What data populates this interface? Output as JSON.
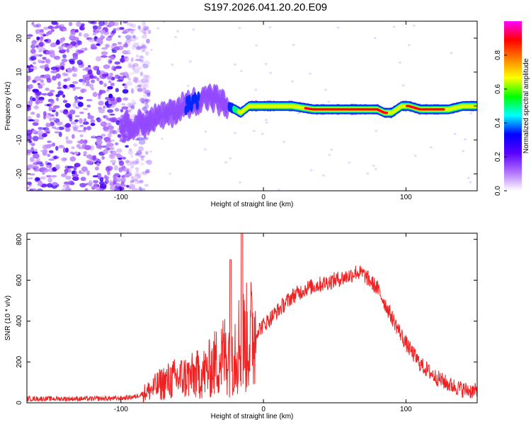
{
  "title": "S197.2026.041.20.20.E09",
  "chart_data": [
    {
      "type": "heatmap",
      "xlabel": "Height of straight line (km)",
      "ylabel": "Frequency (Hz)",
      "xlim": [
        -166,
        150
      ],
      "ylim": [
        -25,
        25
      ],
      "xticks": [
        -100,
        0,
        100
      ],
      "yticks": [
        -20,
        -10,
        0,
        10,
        20
      ],
      "colorbar": {
        "label": "Normalized spectral amplitude",
        "range": [
          0,
          1
        ],
        "ticks": [
          "0.0",
          "0.2",
          "0.4",
          "0.6",
          "0.8"
        ],
        "tick_values": [
          0.0,
          0.2,
          0.4,
          0.6,
          0.8
        ],
        "colors": [
          "#ffffff",
          "#b070ff",
          "#5a00ff",
          "#0000ff",
          "#00ffff",
          "#00ff00",
          "#ffff00",
          "#ff8000",
          "#ff0000",
          "#ff00ff"
        ]
      },
      "ridge": {
        "x": [
          -100,
          -85,
          -70,
          -55,
          -45,
          -38,
          -32,
          -28,
          -25,
          -20,
          -16,
          -10,
          0,
          10,
          20,
          35,
          50,
          70,
          80,
          85,
          90,
          97,
          102,
          110,
          120,
          130,
          140,
          150
        ],
        "y": [
          -6,
          -5,
          -3,
          0,
          2,
          3,
          2,
          0,
          0,
          -1,
          -2,
          0,
          0,
          0,
          0,
          -1,
          -1,
          -1,
          -1,
          -2,
          -2,
          0,
          0,
          -1,
          -1,
          -1,
          0,
          0
        ],
        "amplitude": [
          0.15,
          0.2,
          0.25,
          0.3,
          0.3,
          0.28,
          0.3,
          0.25,
          0.28,
          0.5,
          0.7,
          0.6,
          0.7,
          0.7,
          0.7,
          0.95,
          0.95,
          0.95,
          0.95,
          0.95,
          0.7,
          0.7,
          0.95,
          0.95,
          0.95,
          0.8,
          0.8,
          0.7
        ]
      }
    },
    {
      "type": "line",
      "xlabel": "Height of straight line (km)",
      "ylabel": "SNR (10 * v/v)",
      "xlim": [
        -166,
        150
      ],
      "ylim": [
        0,
        830
      ],
      "xticks": [
        -100,
        0,
        100
      ],
      "yticks": [
        0,
        200,
        400,
        600,
        800
      ],
      "color": "#ee2222",
      "envelope": {
        "x": [
          -166,
          -120,
          -100,
          -90,
          -80,
          -70,
          -60,
          -50,
          -40,
          -30,
          -20,
          -10,
          0,
          10,
          20,
          30,
          40,
          50,
          60,
          65,
          70,
          80,
          90,
          100,
          110,
          120,
          130,
          140,
          150
        ],
        "y": [
          20,
          20,
          22,
          30,
          60,
          100,
          120,
          130,
          150,
          220,
          280,
          320,
          380,
          450,
          520,
          560,
          580,
          600,
          620,
          640,
          630,
          560,
          420,
          290,
          190,
          130,
          90,
          65,
          55
        ]
      },
      "spikes": [
        {
          "x": -23,
          "y": 700
        },
        {
          "x": -15,
          "y": 840
        }
      ]
    }
  ]
}
